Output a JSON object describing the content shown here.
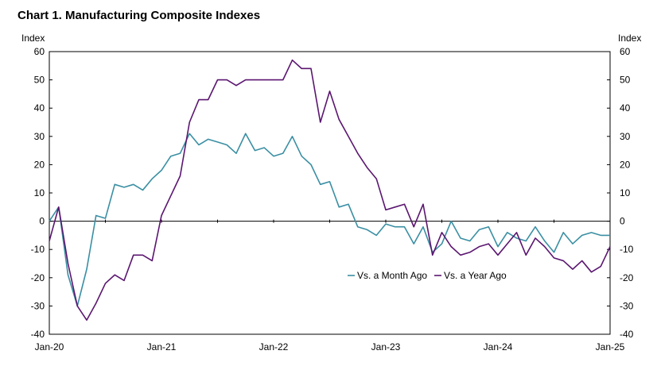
{
  "chart_data": {
    "type": "line",
    "title": "Chart 1. Manufacturing Composite Indexes",
    "ylabel_left": "Index",
    "ylabel_right": "Index",
    "ylim": [
      -40,
      60
    ],
    "yticks": [
      -40,
      -30,
      -20,
      -10,
      0,
      10,
      20,
      30,
      40,
      50,
      60
    ],
    "x_tick_labels": [
      "Jan-20",
      "Jan-21",
      "Jan-22",
      "Jan-23",
      "Jan-24",
      "Jan-25"
    ],
    "x_tick_months": [
      0,
      12,
      24,
      36,
      48,
      60
    ],
    "x_range_months": [
      0,
      60
    ],
    "grid": "horizontal at 60 only",
    "legend_position": "center-right",
    "series": [
      {
        "name": "Vs. a Month Ago",
        "color": "#3a8fa3",
        "values": [
          0,
          5,
          -19,
          -30,
          -17,
          2,
          1,
          13,
          12,
          13,
          11,
          15,
          18,
          23,
          24,
          31,
          27,
          29,
          28,
          27,
          24,
          31,
          25,
          26,
          23,
          24,
          30,
          23,
          20,
          13,
          14,
          5,
          6,
          -2,
          -3,
          -5,
          -1,
          -2,
          -2,
          -8,
          -2,
          -11,
          -8,
          0,
          -6,
          -7,
          -3,
          -2,
          -9,
          -4,
          -6,
          -7,
          -2,
          -7,
          -11,
          -4,
          -8,
          -5,
          -4,
          -5,
          -5
        ]
      },
      {
        "name": "Vs. a Year Ago",
        "color": "#5b1670",
        "values": [
          -7,
          5,
          -15,
          -30,
          -35,
          -29,
          -22,
          -19,
          -21,
          -12,
          -12,
          -14,
          2,
          9,
          16,
          35,
          43,
          43,
          50,
          50,
          48,
          50,
          50,
          50,
          50,
          50,
          57,
          54,
          54,
          35,
          46,
          36,
          30,
          24,
          19,
          15,
          4,
          5,
          6,
          -2,
          6,
          -12,
          -4,
          -9,
          -12,
          -11,
          -9,
          -8,
          -12,
          -8,
          -4,
          -12,
          -6,
          -9,
          -13,
          -14,
          -17,
          -14,
          -18,
          -16,
          -9
        ]
      }
    ]
  }
}
